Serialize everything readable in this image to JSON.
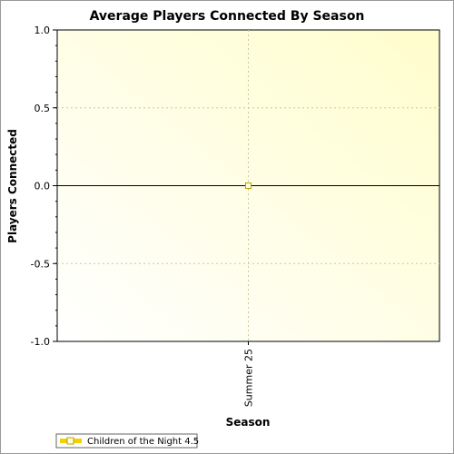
{
  "chart_data": {
    "type": "line",
    "title": "Average Players Connected By Season",
    "xlabel": "Season",
    "ylabel": "Players Connected",
    "categories": [
      "Summer 25"
    ],
    "ylim": [
      -1.0,
      1.0
    ],
    "yticks": [
      "1.0",
      "0.5",
      "0.0",
      "-0.5",
      "-1.0"
    ],
    "grid": true,
    "legend_position": "bottom-left",
    "series": [
      {
        "name": "Children of the Night 4.5",
        "values": [
          0
        ],
        "color": "#f5d000"
      }
    ]
  }
}
